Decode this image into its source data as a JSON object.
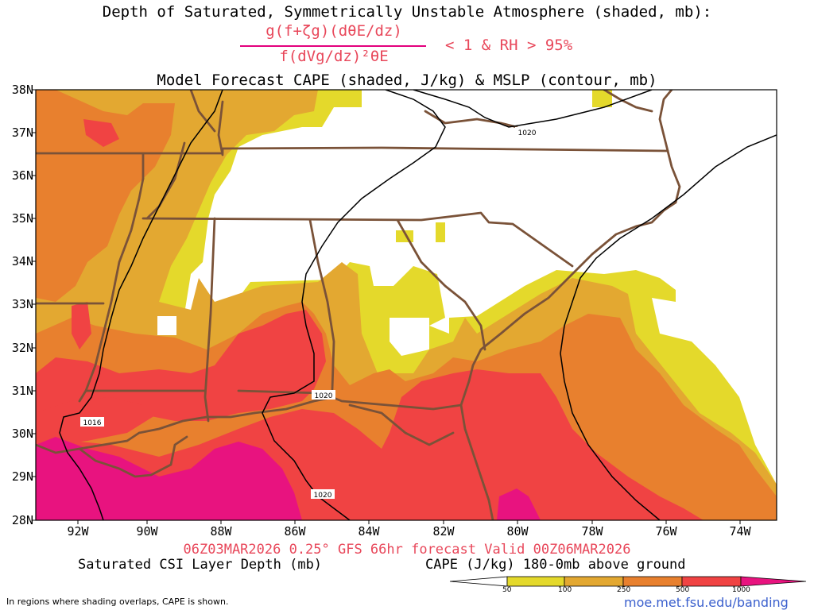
{
  "header": {
    "title_line1": "Depth of Saturated, Symmetrically Unstable Atmosphere (shaded, mb):",
    "formula_numerator": "g(f+ζg)(dθE/dz)",
    "formula_denominator": "f(dVg/dz)²θE",
    "formula_condition": "< 1 & RH > 95%",
    "title_line3": "Model Forecast CAPE (shaded, J/kg) & MSLP (contour, mb)"
  },
  "map": {
    "lat_labels": [
      "38N",
      "37N",
      "36N",
      "35N",
      "34N",
      "33N",
      "32N",
      "31N",
      "30N",
      "29N",
      "28N"
    ],
    "lon_labels": [
      "92W",
      "90W",
      "88W",
      "86W",
      "84W",
      "82W",
      "80W",
      "78W",
      "76W",
      "74W"
    ],
    "isobar_labels": [
      "1020",
      "1016",
      "1020",
      "1020"
    ],
    "colors": {
      "cape_50": "#e4d92b",
      "cape_100": "#e3a831",
      "cape_250": "#e8802e",
      "cape_500": "#f04343",
      "cape_1000": "#e8137f",
      "coast_state_lines": "#7a5238",
      "isobar": "#000000"
    }
  },
  "footer": {
    "run_info": "06Z03MAR2026 0.25° GFS 66hr forecast Valid 00Z06MAR2026",
    "csi_label": "Saturated CSI Layer Depth (mb)",
    "cape_label": "CAPE (J/kg) 180-0mb above ground",
    "colorbar_ticks": [
      "50",
      "100",
      "250",
      "500",
      "1000"
    ],
    "note": "In regions where shading overlaps, CAPE is shown.",
    "url": "moe.met.fsu.edu/banding"
  }
}
